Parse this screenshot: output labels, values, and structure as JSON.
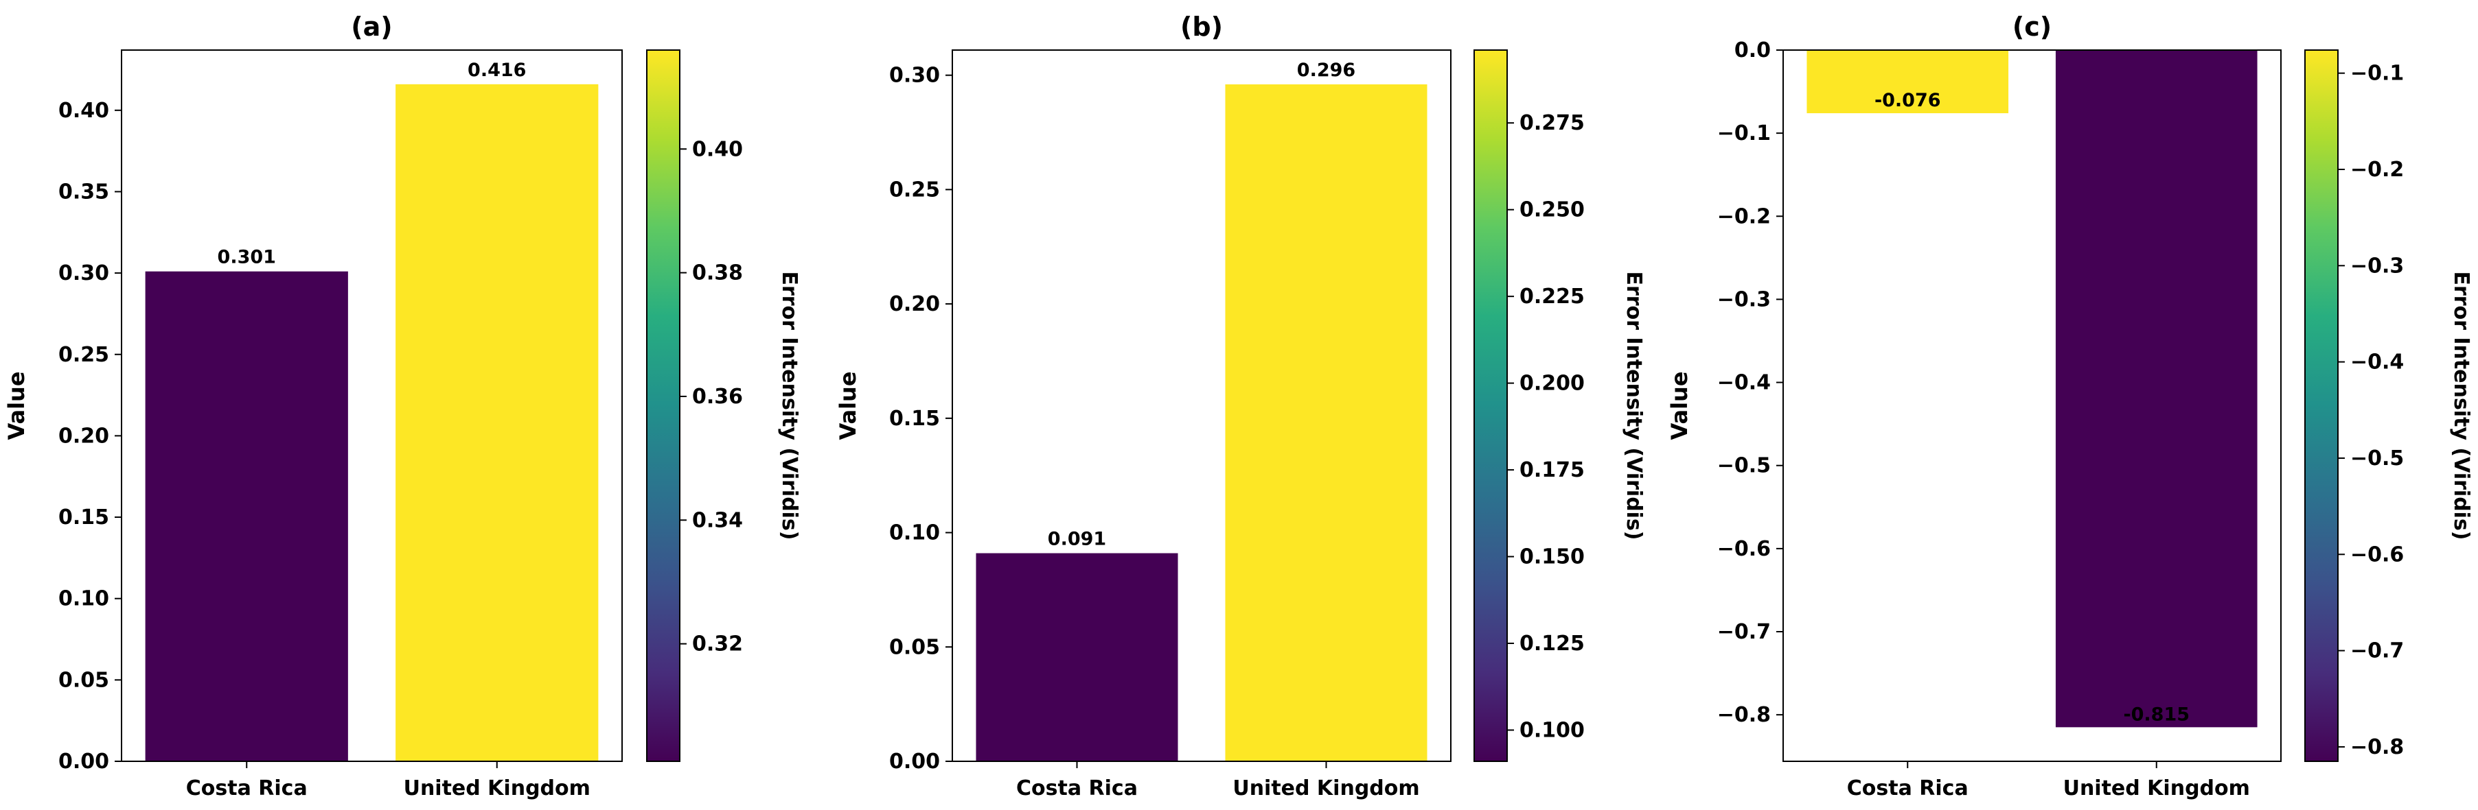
{
  "chart_data": [
    {
      "type": "bar",
      "title": "(a)",
      "ylabel": "Value",
      "xlabel": "",
      "categories": [
        "Costa Rica",
        "United Kingdom"
      ],
      "values": [
        0.301,
        0.416
      ],
      "data_labels": [
        "0.301",
        "0.416"
      ],
      "bar_colors": [
        "#440154",
        "#fde725"
      ],
      "ylim": [
        0,
        0.437
      ],
      "yticks": [
        0.0,
        0.05,
        0.1,
        0.15,
        0.2,
        0.25,
        0.3,
        0.35,
        0.4
      ],
      "ytick_labels": [
        "0.00",
        "0.05",
        "0.10",
        "0.15",
        "0.20",
        "0.25",
        "0.30",
        "0.35",
        "0.40"
      ],
      "colorbar": {
        "label": "Error Intensity (Viridis)",
        "colormap": "viridis",
        "range": [
          0.301,
          0.416
        ],
        "ticks": [
          0.32,
          0.34,
          0.36,
          0.38,
          0.4
        ],
        "tick_labels": [
          "0.32",
          "0.34",
          "0.36",
          "0.38",
          "0.40"
        ]
      },
      "grid": false
    },
    {
      "type": "bar",
      "title": "(b)",
      "ylabel": "Value",
      "xlabel": "",
      "categories": [
        "Costa Rica",
        "United Kingdom"
      ],
      "values": [
        0.091,
        0.296
      ],
      "data_labels": [
        "0.091",
        "0.296"
      ],
      "bar_colors": [
        "#440154",
        "#fde725"
      ],
      "ylim": [
        0,
        0.311
      ],
      "yticks": [
        0.0,
        0.05,
        0.1,
        0.15,
        0.2,
        0.25,
        0.3
      ],
      "ytick_labels": [
        "0.00",
        "0.05",
        "0.10",
        "0.15",
        "0.20",
        "0.25",
        "0.30"
      ],
      "colorbar": {
        "label": "Error Intensity (Viridis)",
        "colormap": "viridis",
        "range": [
          0.091,
          0.296
        ],
        "ticks": [
          0.1,
          0.125,
          0.15,
          0.175,
          0.2,
          0.225,
          0.25,
          0.275
        ],
        "tick_labels": [
          "0.100",
          "0.125",
          "0.150",
          "0.175",
          "0.200",
          "0.225",
          "0.250",
          "0.275"
        ]
      },
      "grid": false
    },
    {
      "type": "bar",
      "title": "(c)",
      "ylabel": "Value",
      "xlabel": "",
      "categories": [
        "Costa Rica",
        "United Kingdom"
      ],
      "values": [
        -0.076,
        -0.815
      ],
      "data_labels": [
        "-0.076",
        "-0.815"
      ],
      "bar_colors": [
        "#fde725",
        "#440154"
      ],
      "ylim": [
        -0.856,
        0.0
      ],
      "yticks": [
        0.0,
        -0.1,
        -0.2,
        -0.3,
        -0.4,
        -0.5,
        -0.6,
        -0.7,
        -0.8
      ],
      "ytick_labels": [
        "0.0",
        "−0.1",
        "−0.2",
        "−0.3",
        "−0.4",
        "−0.5",
        "−0.6",
        "−0.7",
        "−0.8"
      ],
      "colorbar": {
        "label": "Error Intensity (Viridis)",
        "colormap": "viridis",
        "range": [
          -0.815,
          -0.076
        ],
        "ticks": [
          -0.1,
          -0.2,
          -0.3,
          -0.4,
          -0.5,
          -0.6,
          -0.7,
          -0.8
        ],
        "tick_labels": [
          "−0.1",
          "−0.2",
          "−0.3",
          "−0.4",
          "−0.5",
          "−0.6",
          "−0.7",
          "−0.8"
        ]
      },
      "grid": false
    }
  ]
}
